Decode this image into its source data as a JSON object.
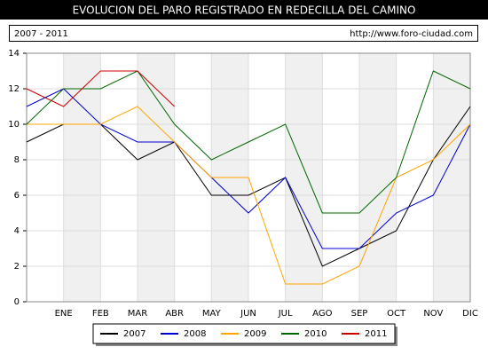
{
  "chart_data": {
    "type": "line",
    "title": "EVOLUCION DEL PARO REGISTRADO EN REDECILLA DEL CAMINO",
    "subtitle": "2007 - 2011",
    "source": "http://www.foro-ciudad.com",
    "categories": [
      null,
      "ENE",
      "FEB",
      "MAR",
      "ABR",
      "MAY",
      "JUN",
      "JUL",
      "AGO",
      "SEP",
      "OCT",
      "NOV",
      "DIC"
    ],
    "series": [
      {
        "name": "2007",
        "color": "#000000",
        "values": [
          9,
          10,
          10,
          8,
          9,
          6,
          6,
          7,
          2,
          3,
          4,
          8,
          11
        ]
      },
      {
        "name": "2008",
        "color": "#0000cc",
        "values": [
          11,
          12,
          10,
          9,
          9,
          7,
          5,
          7,
          3,
          3,
          5,
          6,
          10
        ]
      },
      {
        "name": "2009",
        "color": "#ffa500",
        "values": [
          10,
          10,
          10,
          11,
          9,
          7,
          7,
          1,
          1,
          2,
          7,
          8,
          10
        ]
      },
      {
        "name": "2010",
        "color": "#006600",
        "values": [
          10,
          12,
          12,
          13,
          10,
          8,
          9,
          10,
          5,
          5,
          7,
          13,
          12
        ]
      },
      {
        "name": "2011",
        "color": "#cc0000",
        "values": [
          12,
          11,
          13,
          13,
          11,
          null,
          null,
          null,
          null,
          null,
          null,
          null,
          null
        ]
      }
    ],
    "ylim": [
      0,
      14
    ],
    "yticks": [
      0,
      2,
      4,
      6,
      8,
      10,
      12,
      14
    ],
    "grid": true
  }
}
